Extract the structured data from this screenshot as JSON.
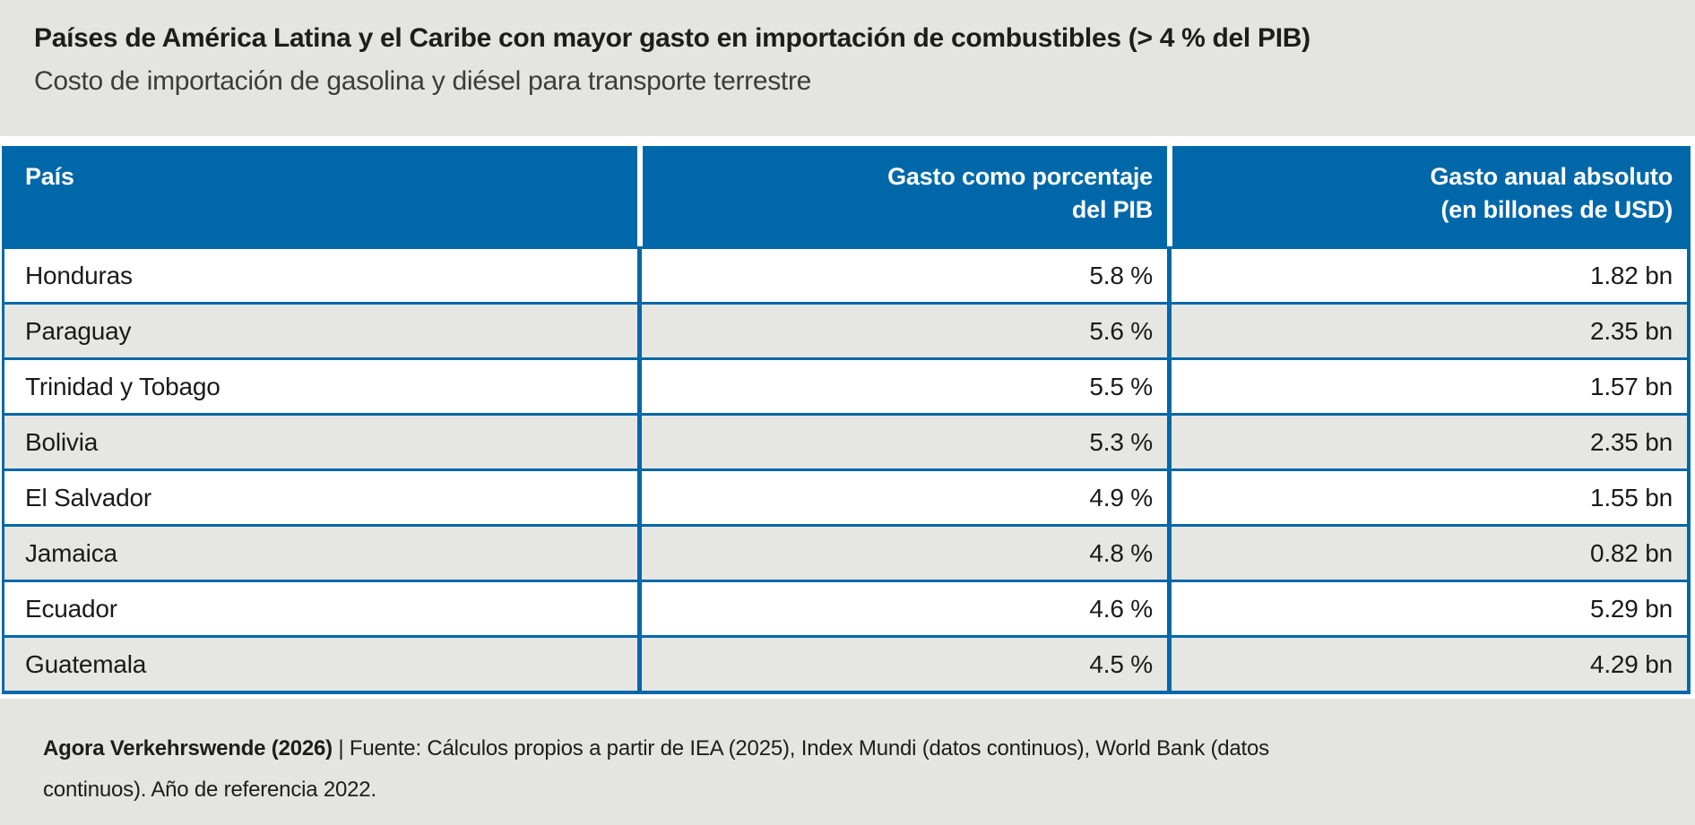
{
  "chart_data": {
    "type": "table",
    "title": "Países de América Latina y el Caribe con mayor gasto en importación de combustibles (> 4 % del PIB)",
    "subtitle": "Costo de importación de gasolina y diésel para transporte terrestre",
    "columns": [
      "País",
      "Gasto como porcentaje del PIB",
      "Gasto anual absoluto (en billones de USD)"
    ],
    "rows": [
      [
        "Honduras",
        "5.8 %",
        "1.82 bn"
      ],
      [
        "Paraguay",
        "5.6 %",
        "2.35 bn"
      ],
      [
        "Trinidad y Tobago",
        "5.5 %",
        "1.57 bn"
      ],
      [
        "Bolivia",
        "5.3 %",
        "2.35 bn"
      ],
      [
        "El Salvador",
        "4.9 %",
        "1.55 bn"
      ],
      [
        "Jamaica",
        "4.8 %",
        "0.82 bn"
      ],
      [
        "Ecuador",
        "4.6 %",
        "5.29 bn"
      ],
      [
        "Guatemala",
        "4.5 %",
        "4.29 bn"
      ]
    ],
    "pct_of_gdp_values": [
      5.8,
      5.6,
      5.5,
      5.3,
      4.9,
      4.8,
      4.6,
      4.5
    ],
    "absolute_spending_bn_usd": [
      1.82,
      2.35,
      1.57,
      2.35,
      1.55,
      0.82,
      5.29,
      4.29
    ],
    "source": "Agora Verkehrswende (2026) | Fuente: Cálculos propios a partir de IEA (2025), Index Mundi (datos continuos), World Bank (datos continuos). Año de referencia 2022."
  },
  "header_columns": {
    "pais": {
      "line1": "País",
      "line2": ""
    },
    "pct": {
      "line1": "Gasto como porcentaje",
      "line2": "del PIB"
    },
    "abs": {
      "line1": "Gasto anual absoluto",
      "line2": "(en billones de USD)"
    }
  },
  "footer": {
    "source_bold": "Agora Verkehrswende (2026)",
    "line1_rest": " | Fuente: Cálculos propios a partir de IEA (2025), Index Mundi (datos continuos), World Bank (datos",
    "line2": "continuos). Año de referencia 2022."
  },
  "colors": {
    "header_blue": "#0068a9",
    "background_gray": "#e4e4e0",
    "row_alt_gray": "#e6e6e2",
    "row_white": "#ffffff",
    "header_text": "#ffffff",
    "body_text": "#1d1d1b"
  }
}
